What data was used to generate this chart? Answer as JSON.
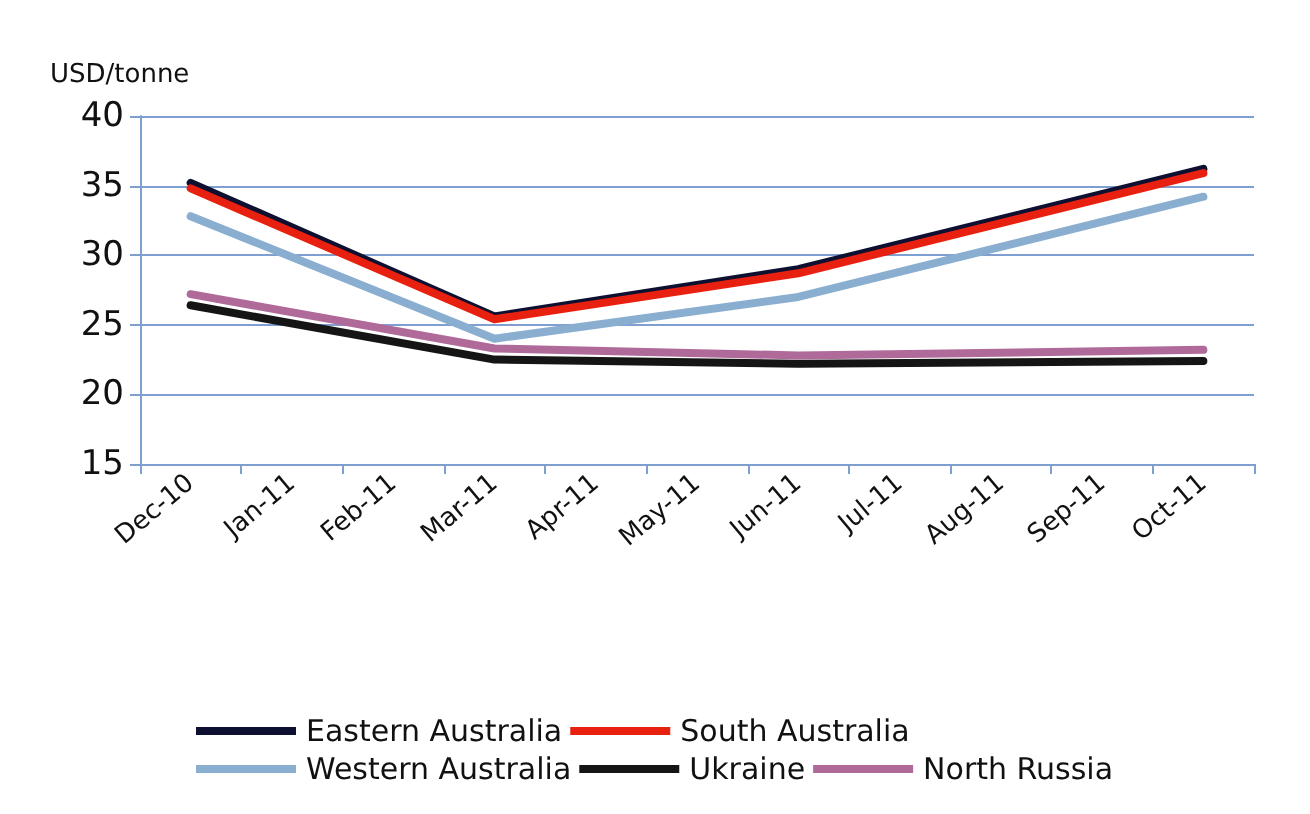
{
  "chart_data": {
    "type": "line",
    "ylabel": "USD/tonne",
    "categories": [
      "Dec-10",
      "Jan-11",
      "Feb-11",
      "Mar-11",
      "Apr-11",
      "May-11",
      "Jun-11",
      "Jul-11",
      "Aug-11",
      "Sep-11",
      "Oct-11"
    ],
    "series": [
      {
        "name": "Eastern Australia",
        "color": "#0d1030",
        "values": [
          35.2,
          null,
          null,
          25.6,
          null,
          null,
          29.0,
          null,
          null,
          null,
          36.2
        ]
      },
      {
        "name": "South Australia",
        "color": "#e82010",
        "values": [
          34.8,
          null,
          null,
          25.4,
          null,
          null,
          28.7,
          null,
          null,
          null,
          35.9
        ]
      },
      {
        "name": "Western Australia",
        "color": "#8aaed0",
        "values": [
          32.8,
          null,
          null,
          24.0,
          null,
          null,
          27.0,
          null,
          null,
          null,
          34.2
        ]
      },
      {
        "name": "Ukraine",
        "color": "#151515",
        "values": [
          26.4,
          null,
          null,
          22.5,
          null,
          null,
          22.2,
          null,
          null,
          null,
          22.4
        ]
      },
      {
        "name": "North Russia",
        "color": "#b06a9a",
        "values": [
          27.2,
          null,
          null,
          23.3,
          null,
          null,
          22.8,
          null,
          null,
          null,
          23.2
        ]
      }
    ],
    "ylim": [
      15,
      40
    ],
    "yticks": [
      15,
      20,
      25,
      30,
      35,
      40
    ],
    "grid": "y",
    "legend": "bottom",
    "marker": "none",
    "line_style": "solid"
  }
}
